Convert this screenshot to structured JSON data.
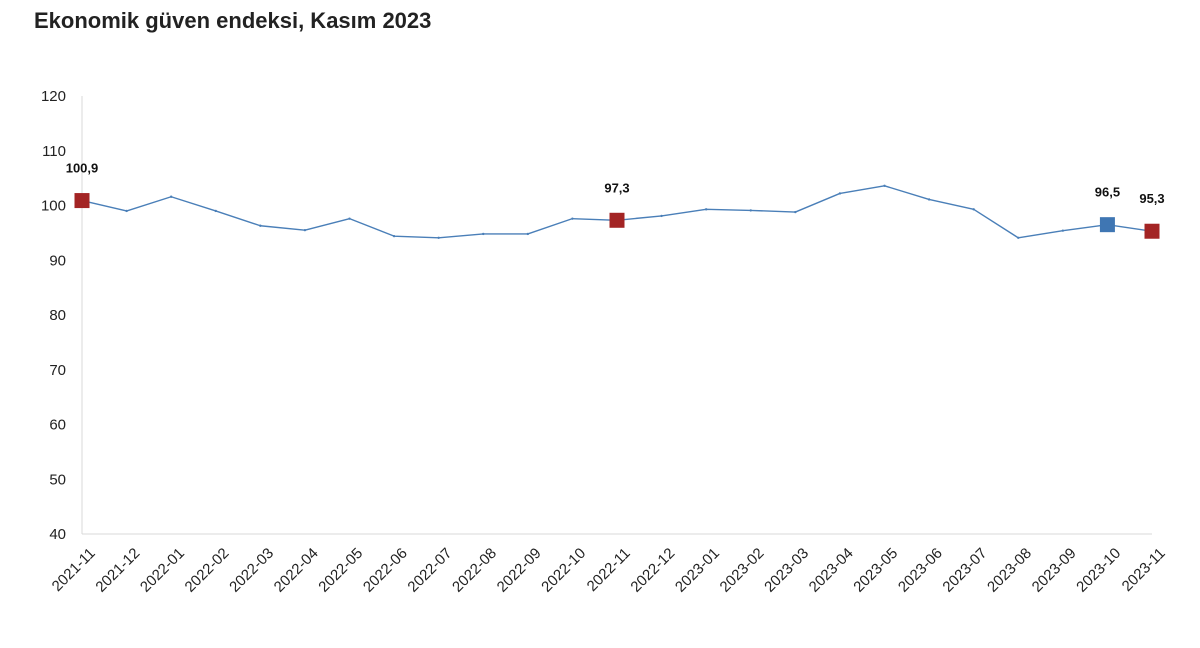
{
  "title": "Ekonomik güven endeksi, Kasım 2023",
  "chart_data": {
    "type": "line",
    "title": "Ekonomik güven endeksi, Kasım 2023",
    "xlabel": "",
    "ylabel": "",
    "ylim": [
      40,
      120
    ],
    "yticks": [
      "120",
      "110",
      "100",
      "90",
      "80",
      "70",
      "60",
      "50",
      "40"
    ],
    "grid": false,
    "legend": "none",
    "categories": [
      "2021-11",
      "2021-12",
      "2022-01",
      "2022-02",
      "2022-03",
      "2022-04",
      "2022-05",
      "2022-06",
      "2022-07",
      "2022-08",
      "2022-09",
      "2022-10",
      "2022-11",
      "2022-12",
      "2023-01",
      "2023-02",
      "2023-03",
      "2023-04",
      "2023-05",
      "2023-06",
      "2023-07",
      "2023-08",
      "2023-09",
      "2023-10",
      "2023-11"
    ],
    "series": [
      {
        "values": [
          100.9,
          99.0,
          101.6,
          99.0,
          96.3,
          95.5,
          97.6,
          94.4,
          94.1,
          94.8,
          94.8,
          97.6,
          97.3,
          98.1,
          99.3,
          99.1,
          98.8,
          102.2,
          103.6,
          101.1,
          99.3,
          94.1,
          95.4,
          96.5,
          95.3
        ],
        "color": "#4a7fb8"
      }
    ],
    "markers": [
      {
        "category": "2021-11",
        "value": 100.9,
        "label": "100,9",
        "color": "#a32424"
      },
      {
        "category": "2022-11",
        "value": 97.3,
        "label": "97,3",
        "color": "#a32424"
      },
      {
        "category": "2023-10",
        "value": 96.5,
        "label": "96,5",
        "color": "#3f76b3"
      },
      {
        "category": "2023-11",
        "value": 95.3,
        "label": "95,3",
        "color": "#a32424"
      }
    ],
    "colors": {
      "axis": "#d9d9d9",
      "text": "#222222"
    }
  }
}
